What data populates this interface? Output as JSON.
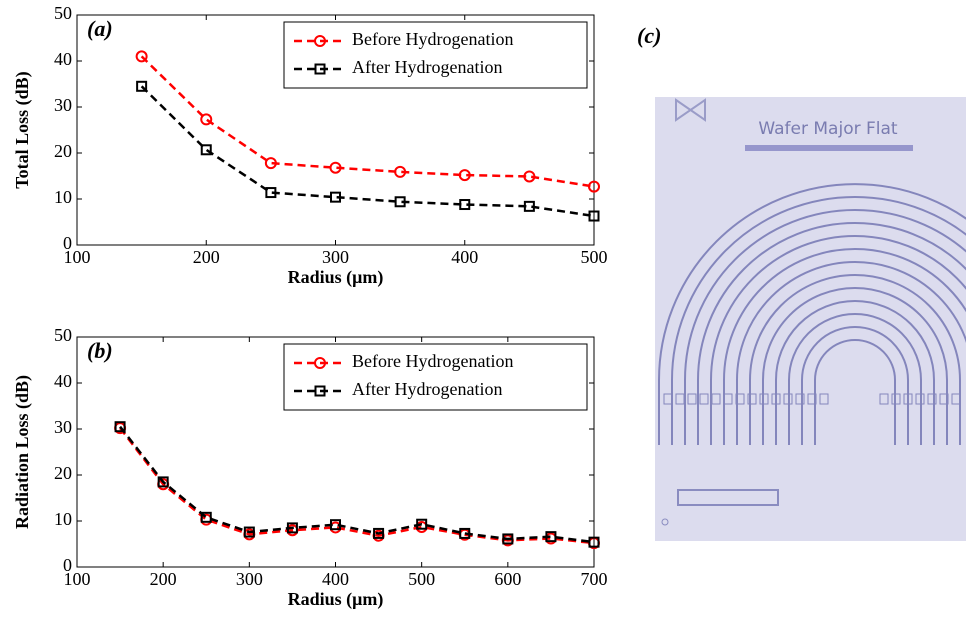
{
  "chart_data": [
    {
      "type": "line",
      "annotation": "(a)",
      "xlabel": "Radius (μm)",
      "ylabel": "Total Loss (dB)",
      "x": [
        150,
        200,
        250,
        300,
        350,
        400,
        450,
        500
      ],
      "series": [
        {
          "name": "Before Hydrogenation",
          "color": "#ff0000",
          "marker": "o",
          "values": [
            41,
            27.3,
            17.8,
            16.8,
            15.9,
            15.2,
            14.9,
            12.7
          ]
        },
        {
          "name": "After Hydrogenation",
          "color": "#000000",
          "marker": "s",
          "values": [
            34.5,
            20.7,
            11.4,
            10.4,
            9.4,
            8.8,
            8.4,
            6.3
          ]
        }
      ],
      "xlim": [
        100,
        500
      ],
      "xticks": [
        100,
        200,
        300,
        400,
        500
      ],
      "ylim": [
        0,
        50
      ],
      "yticks": [
        0,
        10,
        20,
        30,
        40,
        50
      ],
      "legend": "upper right",
      "grid": false
    },
    {
      "type": "line",
      "annotation": "(b)",
      "xlabel": "Radius (μm)",
      "ylabel": "Radiation Loss (dB)",
      "x": [
        150,
        200,
        250,
        300,
        350,
        400,
        450,
        500,
        550,
        600,
        650,
        700
      ],
      "series": [
        {
          "name": "Before Hydrogenation",
          "color": "#ff0000",
          "marker": "o",
          "values": [
            30.2,
            18,
            10.3,
            7.1,
            8,
            8.6,
            6.8,
            8.7,
            7,
            5.8,
            6.2,
            5.2
          ]
        },
        {
          "name": "After Hydrogenation",
          "color": "#000000",
          "marker": "s",
          "values": [
            30.5,
            18.5,
            10.8,
            7.6,
            8.5,
            9.2,
            7.3,
            9.3,
            7.3,
            6.1,
            6.6,
            5.4
          ]
        }
      ],
      "xlim": [
        100,
        700
      ],
      "xticks": [
        100,
        200,
        300,
        400,
        500,
        600,
        700
      ],
      "ylim": [
        0,
        50
      ],
      "yticks": [
        0,
        10,
        20,
        30,
        40,
        50
      ],
      "legend": "upper right",
      "grid": false
    }
  ],
  "image_panel": {
    "label": "(c)",
    "text": "Wafer Major Flat"
  }
}
